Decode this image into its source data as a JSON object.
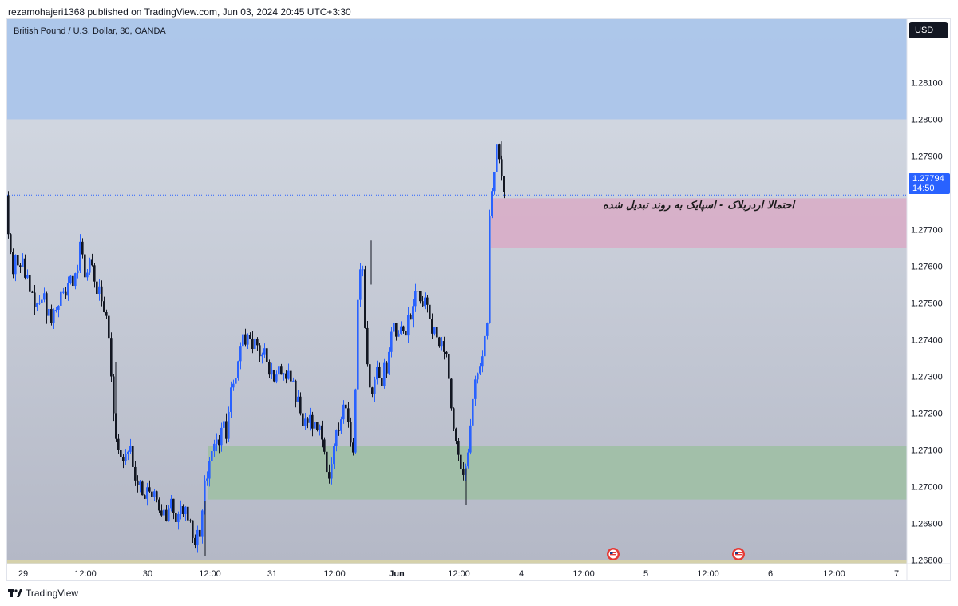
{
  "header": {
    "published_line": "rezamohajeri1368 published on TradingView.com, Jun 03, 2024 20:45 UTC+3:30"
  },
  "chart": {
    "symbol_line": "British Pound / U.S. Dollar, 30, OANDA",
    "currency_button": "USD",
    "current_price": "1.27794",
    "countdown": "14:50",
    "annotation": "احتمالا اردربلاک - اسپایک به روند تبدیل شده"
  },
  "footer": {
    "brand": "TradingView"
  },
  "colors": {
    "bullish": "#2962ff",
    "bearish": "#131722",
    "top_zone": "#a9c4ea",
    "pink_zone": "#d8aec8",
    "green_zone": "#9fbfa6",
    "yellow_zone": "#d8d2a8",
    "bg_top": "#d7dde6",
    "bg_bottom": "#b4b8c6"
  },
  "chart_data": {
    "type": "candlestick",
    "instrument": "GBPUSD",
    "timeframe": "30",
    "source": "OANDA",
    "y_ticks": [
      "1.28100",
      "1.28000",
      "1.27900",
      "1.27700",
      "1.27600",
      "1.27500",
      "1.27400",
      "1.27300",
      "1.27200",
      "1.27100",
      "1.27000",
      "1.26900",
      "1.26800"
    ],
    "x_ticks": [
      "29",
      "12:00",
      "30",
      "12:00",
      "31",
      "12:00",
      "Jun",
      "12:00",
      "4",
      "12:00",
      "5",
      "12:00",
      "6",
      "12:00",
      "7"
    ],
    "zones": [
      {
        "name": "supply-zone-top",
        "from": 1.28,
        "to": 1.2823,
        "color": "#a9c4ea"
      },
      {
        "name": "order-block-zone",
        "from": 1.2765,
        "to": 1.27785,
        "color": "#d8aec8"
      },
      {
        "name": "demand-zone",
        "from": 1.26965,
        "to": 1.2711,
        "color": "#9fbfa6"
      },
      {
        "name": "bottom-zone",
        "from": 1.2676,
        "to": 1.268,
        "color": "#d8d2a8"
      }
    ],
    "last_price": 1.27794,
    "path": [
      [
        0,
        1.277
      ],
      [
        4,
        1.2768
      ],
      [
        8,
        1.2757
      ],
      [
        12,
        1.2764
      ],
      [
        16,
        1.2758
      ],
      [
        20,
        1.2763
      ],
      [
        24,
        1.2756
      ],
      [
        27,
        1.2758
      ],
      [
        30,
        1.2752
      ],
      [
        33,
        1.2753
      ],
      [
        36,
        1.2748
      ],
      [
        40,
        1.2751
      ],
      [
        43,
        1.2749
      ],
      [
        47,
        1.2754
      ],
      [
        50,
        1.2746
      ],
      [
        53,
        1.2749
      ],
      [
        57,
        1.2744
      ],
      [
        60,
        1.2749
      ],
      [
        63,
        1.2748
      ],
      [
        67,
        1.275
      ],
      [
        70,
        1.2756
      ],
      [
        73,
        1.275
      ],
      [
        76,
        1.2754
      ],
      [
        80,
        1.2758
      ],
      [
        83,
        1.2754
      ],
      [
        86,
        1.2758
      ],
      [
        90,
        1.2759
      ],
      [
        92,
        1.2767
      ],
      [
        95,
        1.2765
      ],
      [
        97,
        1.2758
      ],
      [
        100,
        1.2756
      ],
      [
        104,
        1.2762
      ],
      [
        108,
        1.276
      ],
      [
        111,
        1.2755
      ],
      [
        114,
        1.2752
      ],
      [
        118,
        1.2756
      ],
      [
        121,
        1.2745
      ],
      [
        124,
        1.275
      ],
      [
        127,
        1.2743
      ],
      [
        130,
        1.2738
      ],
      [
        133,
        1.2722
      ],
      [
        136,
        1.2718
      ],
      [
        139,
        1.2708
      ],
      [
        142,
        1.2712
      ],
      [
        145,
        1.2704
      ],
      [
        148,
        1.271
      ],
      [
        151,
        1.2708
      ],
      [
        155,
        1.2712
      ],
      [
        158,
        1.2706
      ],
      [
        161,
        1.2702
      ],
      [
        164,
        1.27
      ],
      [
        167,
        1.2702
      ],
      [
        170,
        1.2698
      ],
      [
        173,
        1.2696
      ],
      [
        176,
        1.27
      ],
      [
        179,
        1.2699
      ],
      [
        182,
        1.2697
      ],
      [
        186,
        1.2699
      ],
      [
        189,
        1.2696
      ],
      [
        192,
        1.2693
      ],
      [
        195,
        1.2692
      ],
      [
        198,
        1.2694
      ],
      [
        201,
        1.269
      ],
      [
        204,
        1.2695
      ],
      [
        207,
        1.2697
      ],
      [
        210,
        1.2692
      ],
      [
        213,
        1.269
      ],
      [
        216,
        1.2693
      ],
      [
        219,
        1.2695
      ],
      [
        222,
        1.2692
      ],
      [
        225,
        1.2695
      ],
      [
        228,
        1.269
      ],
      [
        231,
        1.2691
      ],
      [
        234,
        1.2685
      ],
      [
        237,
        1.2684
      ],
      [
        240,
        1.2689
      ],
      [
        243,
        1.2686
      ],
      [
        246,
        1.2695
      ],
      [
        249,
        1.2703
      ],
      [
        252,
        1.2702
      ],
      [
        255,
        1.2708
      ],
      [
        258,
        1.271
      ],
      [
        261,
        1.2712
      ],
      [
        264,
        1.2713
      ],
      [
        267,
        1.2711
      ],
      [
        270,
        1.2717
      ],
      [
        273,
        1.2718
      ],
      [
        276,
        1.2712
      ],
      [
        279,
        1.2722
      ],
      [
        282,
        1.2728
      ],
      [
        285,
        1.2728
      ],
      [
        288,
        1.273
      ],
      [
        291,
        1.2735
      ],
      [
        294,
        1.2739
      ],
      [
        297,
        1.2742
      ],
      [
        300,
        1.2738
      ],
      [
        303,
        1.2742
      ],
      [
        306,
        1.274
      ],
      [
        309,
        1.2737
      ],
      [
        312,
        1.2741
      ],
      [
        315,
        1.2738
      ],
      [
        318,
        1.2735
      ],
      [
        321,
        1.2736
      ],
      [
        324,
        1.2738
      ],
      [
        327,
        1.2733
      ],
      [
        330,
        1.273
      ],
      [
        333,
        1.2732
      ],
      [
        336,
        1.2728
      ],
      [
        339,
        1.2731
      ],
      [
        342,
        1.2733
      ],
      [
        345,
        1.273
      ],
      [
        348,
        1.2731
      ],
      [
        351,
        1.2729
      ],
      [
        354,
        1.2732
      ],
      [
        357,
        1.2728
      ],
      [
        360,
        1.2729
      ],
      [
        363,
        1.2722
      ],
      [
        366,
        1.2725
      ],
      [
        369,
        1.2719
      ],
      [
        372,
        1.2716
      ],
      [
        375,
        1.2719
      ],
      [
        378,
        1.2717
      ],
      [
        381,
        1.272
      ],
      [
        384,
        1.2715
      ],
      [
        387,
        1.2718
      ],
      [
        390,
        1.2715
      ],
      [
        393,
        1.2717
      ],
      [
        396,
        1.2712
      ],
      [
        399,
        1.2709
      ],
      [
        402,
        1.2703
      ],
      [
        405,
        1.2702
      ],
      [
        408,
        1.2707
      ],
      [
        411,
        1.2712
      ],
      [
        414,
        1.2716
      ],
      [
        417,
        1.2715
      ],
      [
        420,
        1.2719
      ],
      [
        423,
        1.2723
      ],
      [
        426,
        1.2721
      ],
      [
        429,
        1.2717
      ],
      [
        432,
        1.2711
      ],
      [
        435,
        1.2709
      ],
      [
        438,
        1.273
      ],
      [
        441,
        1.2755
      ],
      [
        444,
        1.276
      ],
      [
        447,
        1.2759
      ],
      [
        450,
        1.274
      ],
      [
        453,
        1.2732
      ],
      [
        456,
        1.2726
      ],
      [
        459,
        1.2725
      ],
      [
        462,
        1.273
      ],
      [
        465,
        1.2733
      ],
      [
        468,
        1.2729
      ],
      [
        471,
        1.2727
      ],
      [
        474,
        1.2735
      ],
      [
        477,
        1.273
      ],
      [
        480,
        1.2738
      ],
      [
        483,
        1.2743
      ],
      [
        486,
        1.2745
      ],
      [
        489,
        1.274
      ],
      [
        492,
        1.2742
      ],
      [
        495,
        1.2744
      ],
      [
        498,
        1.2742
      ],
      [
        501,
        1.2741
      ],
      [
        504,
        1.2748
      ],
      [
        507,
        1.2745
      ],
      [
        510,
        1.275
      ],
      [
        513,
        1.2754
      ],
      [
        516,
        1.2753
      ],
      [
        519,
        1.275
      ],
      [
        522,
        1.2749
      ],
      [
        525,
        1.2752
      ],
      [
        528,
        1.2749
      ],
      [
        531,
        1.2745
      ],
      [
        534,
        1.2741
      ],
      [
        537,
        1.2744
      ],
      [
        540,
        1.274
      ],
      [
        543,
        1.2738
      ],
      [
        546,
        1.274
      ],
      [
        549,
        1.2736
      ],
      [
        552,
        1.2736
      ],
      [
        555,
        1.2728
      ],
      [
        558,
        1.272
      ],
      [
        561,
        1.2715
      ],
      [
        564,
        1.2712
      ],
      [
        567,
        1.2708
      ],
      [
        570,
        1.2704
      ],
      [
        573,
        1.2703
      ],
      [
        576,
        1.2706
      ],
      [
        579,
        1.271
      ],
      [
        582,
        1.2718
      ],
      [
        585,
        1.2725
      ],
      [
        588,
        1.273
      ],
      [
        591,
        1.2731
      ],
      [
        594,
        1.2733
      ],
      [
        597,
        1.2736
      ],
      [
        600,
        1.2742
      ],
      [
        603,
        1.2745
      ],
      [
        605,
        1.277
      ],
      [
        607,
        1.2785
      ],
      [
        609,
        1.2779
      ],
      [
        611,
        1.2784
      ],
      [
        614,
        1.2794
      ],
      [
        617,
        1.279
      ],
      [
        620,
        1.2785
      ],
      [
        622,
        1.2783
      ],
      [
        624,
        1.27794
      ]
    ]
  }
}
